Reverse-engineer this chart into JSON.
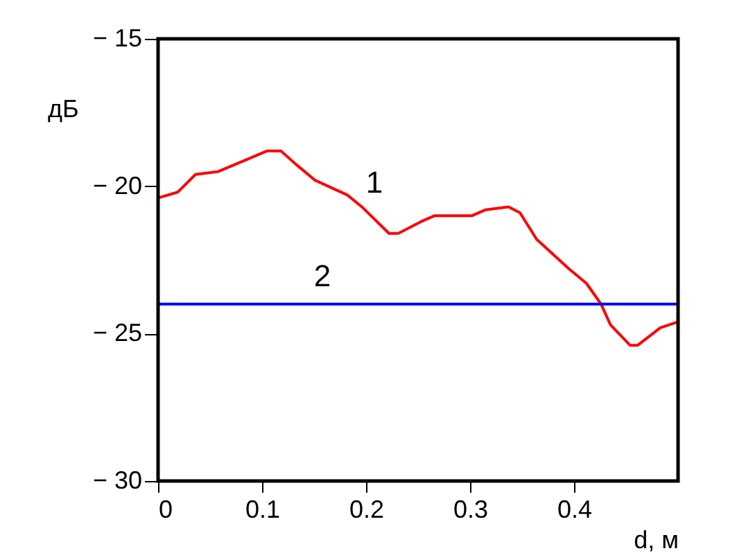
{
  "chart_data": {
    "type": "line",
    "xlabel": "d, м",
    "ylabel": "дБ",
    "xlim": [
      0,
      0.5
    ],
    "xticks": [
      0,
      0.1,
      0.2,
      0.3,
      0.4
    ],
    "ylim": [
      -30,
      -15
    ],
    "yticks": [
      {
        "value": -30,
        "label": "− 30"
      },
      {
        "value": -25,
        "label": "− 25"
      },
      {
        "value": -20,
        "label": "− 20"
      },
      {
        "value": -15,
        "label": "− 15"
      }
    ],
    "grid": false,
    "marker": "none",
    "line_style": "solid",
    "series": [
      {
        "name": "1",
        "color": "#ff0000",
        "x": [
          0,
          0.019,
          0.036,
          0.058,
          0.085,
          0.105,
          0.118,
          0.134,
          0.151,
          0.182,
          0.196,
          0.222,
          0.231,
          0.253,
          0.266,
          0.302,
          0.315,
          0.337,
          0.348,
          0.364,
          0.395,
          0.412,
          0.426,
          0.435,
          0.454,
          0.461,
          0.483,
          0.5
        ],
        "values": [
          -20.4,
          -20.2,
          -19.6,
          -19.5,
          -19.1,
          -18.8,
          -18.8,
          -19.3,
          -19.8,
          -20.3,
          -20.7,
          -21.6,
          -21.6,
          -21.2,
          -21.0,
          -21.0,
          -20.8,
          -20.7,
          -20.9,
          -21.8,
          -22.8,
          -23.3,
          -24.0,
          -24.7,
          -25.4,
          -25.4,
          -24.8,
          -24.6
        ]
      },
      {
        "name": "2",
        "color": "#0000ff",
        "x": [
          0,
          0.5
        ],
        "values": [
          -24,
          -24
        ]
      }
    ]
  }
}
